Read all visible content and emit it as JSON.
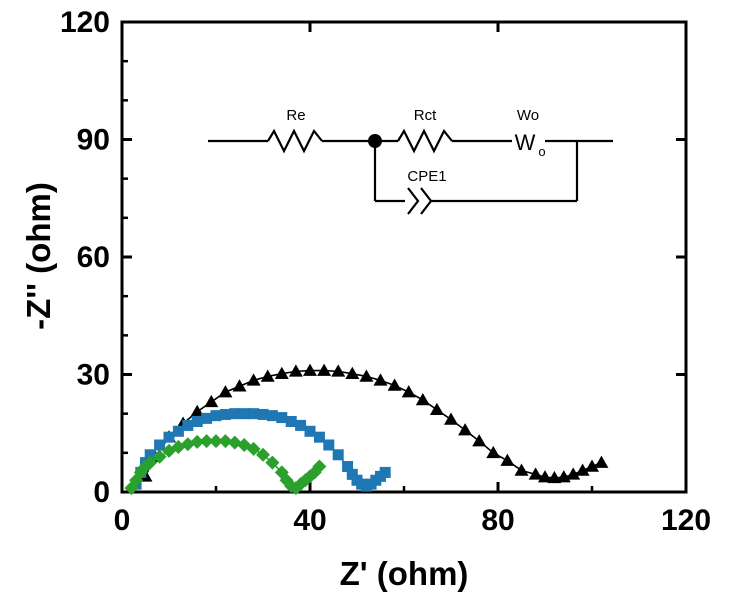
{
  "chart_data": {
    "type": "scatter",
    "title": "",
    "xlabel": "Z' (ohm)",
    "ylabel": "-Z'' (ohm)",
    "xlim": [
      0,
      120
    ],
    "ylim": [
      0,
      120
    ],
    "xticks": [
      0,
      40,
      80,
      120
    ],
    "yticks": [
      0,
      30,
      60,
      90,
      120
    ],
    "grid": false,
    "series": [
      {
        "marker": "triangle",
        "color": "#000000",
        "fit_line": true,
        "x": [
          5,
          7,
          10,
          13,
          16,
          19,
          22,
          25,
          28,
          31,
          34,
          37,
          40,
          43,
          46,
          49,
          52,
          55,
          58,
          61,
          64,
          67,
          70,
          73,
          76,
          79,
          82,
          85,
          88,
          90,
          92,
          94,
          96,
          98,
          100,
          102
        ],
        "y": [
          4,
          9,
          14,
          17.5,
          20.5,
          23,
          25.5,
          27,
          28.5,
          29.5,
          30.2,
          30.8,
          31,
          31,
          30.8,
          30.2,
          29.5,
          28.5,
          27.2,
          25.5,
          23.5,
          21,
          18.5,
          15.8,
          13,
          10,
          8,
          5.5,
          4.5,
          3.8,
          3.6,
          3.8,
          4.5,
          5.5,
          6.5,
          7.5
        ]
      },
      {
        "marker": "square",
        "color": "#1f77b4",
        "fit_line": true,
        "x": [
          3,
          4,
          5,
          6,
          8,
          10,
          12,
          14,
          16,
          18,
          20,
          22,
          24,
          26,
          28,
          30,
          32,
          34,
          36,
          38,
          40,
          42,
          44,
          46,
          48,
          49,
          50,
          51,
          52,
          53,
          54,
          55,
          56
        ],
        "y": [
          2,
          5,
          7.5,
          9.5,
          12,
          14,
          15.5,
          17,
          18,
          18.8,
          19.5,
          19.8,
          20,
          20,
          20,
          19.8,
          19.5,
          19,
          18,
          17,
          15.5,
          14,
          12,
          9.5,
          6.5,
          4.5,
          3,
          2,
          1.5,
          2,
          3,
          4,
          5
        ]
      },
      {
        "marker": "diamond",
        "color": "#2ca02c",
        "fit_line": true,
        "x": [
          2,
          3,
          4,
          5,
          6,
          8,
          10,
          12,
          14,
          16,
          18,
          20,
          22,
          24,
          26,
          28,
          30,
          32,
          34,
          35,
          36,
          37,
          38,
          39,
          40,
          41,
          42
        ],
        "y": [
          1,
          3,
          5,
          6.5,
          7.5,
          9,
          10.5,
          11.5,
          12.2,
          12.8,
          13,
          13,
          13,
          12.6,
          12,
          11,
          9.5,
          7.5,
          5,
          3,
          1.5,
          1,
          2,
          3,
          4,
          5,
          6.5
        ]
      }
    ],
    "inset_circuit": {
      "labels": [
        "Re",
        "Rct",
        "Wo",
        "W",
        "o",
        "CPE1"
      ]
    }
  }
}
